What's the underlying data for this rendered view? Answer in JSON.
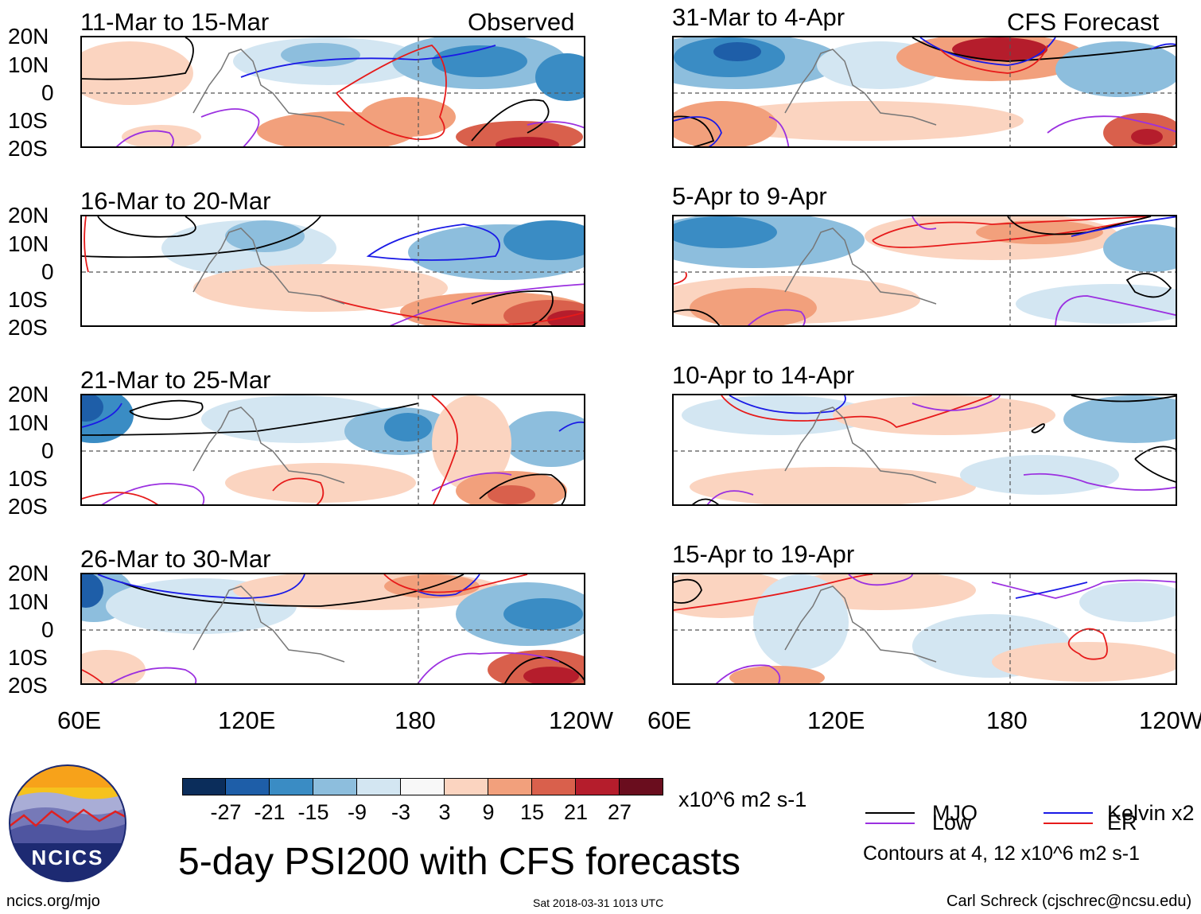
{
  "panels": [
    {
      "title": "11-Mar to 15-Mar",
      "tag": "Observed"
    },
    {
      "title": "16-Mar to 20-Mar",
      "tag": ""
    },
    {
      "title": "21-Mar to 25-Mar",
      "tag": ""
    },
    {
      "title": "26-Mar to 30-Mar",
      "tag": ""
    },
    {
      "title": "31-Mar to 4-Apr",
      "tag": "CFS Forecast"
    },
    {
      "title": "5-Apr to 9-Apr",
      "tag": ""
    },
    {
      "title": "10-Apr to 14-Apr",
      "tag": ""
    },
    {
      "title": "15-Apr to 19-Apr",
      "tag": ""
    }
  ],
  "lat_labels": [
    "20N",
    "10N",
    "0",
    "10S",
    "20S"
  ],
  "lon_labels": [
    "60E",
    "120E",
    "180",
    "120W"
  ],
  "colorbar": {
    "colors": [
      "#0b2d5b",
      "#1e5ea8",
      "#3a8cc4",
      "#8dbedd",
      "#d3e6f2",
      "#f8f8f8",
      "#fbd4c0",
      "#f2a07c",
      "#d9604c",
      "#b51d2c",
      "#6a0d1e"
    ],
    "labels": [
      "-27",
      "-21",
      "-15",
      "-9",
      "-3",
      "3",
      "9",
      "15",
      "21",
      "27"
    ],
    "units": "x10^6 m2 s-1"
  },
  "legend": {
    "mjo": {
      "label": "MJO",
      "color": "#000000"
    },
    "kelvin": {
      "label": "Kelvin x2",
      "color": "#1a1ae6"
    },
    "low": {
      "label": "Low",
      "color": "#9b30e0"
    },
    "er": {
      "label": "ER",
      "color": "#e61a1a"
    },
    "contours_note": "Contours at 4, 12 x10^6 m2 s-1"
  },
  "logo": {
    "text": "NCICS"
  },
  "main_title": "5-day PSI200 with CFS forecasts",
  "footer": {
    "site": "ncics.org/mjo",
    "timestamp": "Sat 2018-03-31 1013 UTC",
    "author": "Carl Schreck (cjschrec@ncsu.edu)"
  }
}
